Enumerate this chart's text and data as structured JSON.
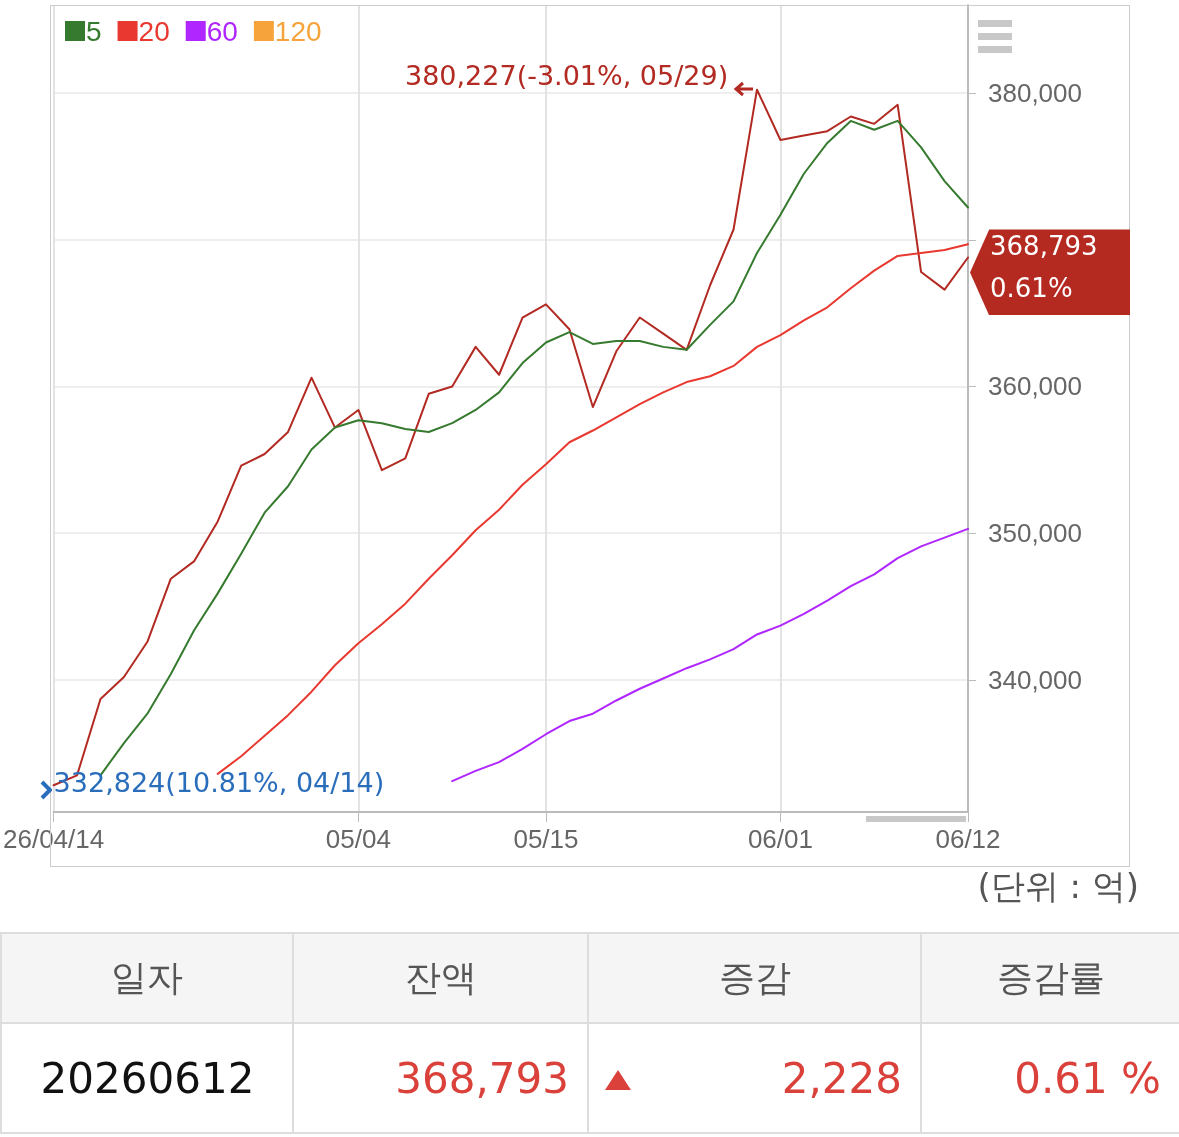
{
  "chart_data": [
    {
      "type": "line",
      "categories": [
        "26/04/14",
        null,
        null,
        null,
        null,
        null,
        null,
        null,
        null,
        null,
        null,
        null,
        null,
        "05/04",
        null,
        null,
        null,
        null,
        null,
        null,
        null,
        "05/15",
        null,
        null,
        null,
        null,
        null,
        null,
        null,
        null,
        null,
        "06/01",
        null,
        null,
        null,
        null,
        null,
        null,
        null,
        "06/12"
      ],
      "series": [
        {
          "color": "#b22a22",
          "values": [
            332824,
            333500,
            338700,
            340200,
            342600,
            346900,
            348100,
            350800,
            354600,
            355400,
            356900,
            360600,
            357200,
            358400,
            354300,
            355100,
            359500,
            360000,
            362700,
            360800,
            364700,
            365600,
            363900,
            358600,
            362400,
            364700,
            363600,
            362500,
            366900,
            370700,
            380227,
            376800,
            377100,
            377400,
            378400,
            377900,
            379200,
            367800,
            366600,
            368793
          ]
        },
        {
          "name": "5",
          "color": "#357a2e",
          "values": [
            null,
            null,
            333500,
            335700,
            337700,
            340400,
            343400,
            345900,
            348600,
            351400,
            353200,
            355700,
            357200,
            357700,
            357500,
            357100,
            356900,
            357500,
            358400,
            359600,
            361600,
            363000,
            363700,
            362900,
            363100,
            363100,
            362700,
            362500,
            364200,
            365800,
            369100,
            371700,
            374500,
            376600,
            378100,
            377500,
            378100,
            376300,
            374000,
            372200
          ]
        },
        {
          "name": "20",
          "color": "#e8382f",
          "values": [
            null,
            null,
            null,
            null,
            null,
            null,
            null,
            333600,
            334800,
            336200,
            337600,
            339200,
            341000,
            342500,
            343800,
            345200,
            346900,
            348500,
            350200,
            351600,
            353300,
            354700,
            356200,
            357000,
            357900,
            358800,
            359600,
            360300,
            360700,
            361400,
            362700,
            363500,
            364500,
            365400,
            366700,
            367900,
            368900,
            369100,
            369300,
            369700
          ]
        },
        {
          "name": "60",
          "color": "#b026ff",
          "values": [
            null,
            null,
            null,
            null,
            null,
            null,
            null,
            null,
            null,
            null,
            null,
            null,
            null,
            null,
            null,
            null,
            null,
            333100,
            333800,
            334400,
            335300,
            336300,
            337200,
            337700,
            338600,
            339400,
            340100,
            340800,
            341400,
            342100,
            343100,
            343700,
            344500,
            345400,
            346400,
            347200,
            348300,
            349100,
            349700,
            350300
          ]
        },
        {
          "name": "120",
          "color": "#f5a33a",
          "values": [
            null,
            null,
            null,
            null,
            null,
            null,
            null,
            null,
            null,
            null,
            null,
            null,
            null,
            null,
            null,
            null,
            null,
            null,
            null,
            null,
            null,
            null,
            null,
            null,
            null,
            null,
            null,
            null,
            null,
            null,
            null,
            null,
            null,
            null,
            null,
            null,
            null,
            null,
            null,
            null
          ]
        }
      ],
      "ylim": [
        331000,
        386000
      ],
      "yticks": [
        {
          "value": 340000,
          "label": "340,000"
        },
        {
          "value": 350000,
          "label": "350,000"
        },
        {
          "value": 360000,
          "label": "360,000"
        },
        {
          "value": 370000,
          "label": null
        },
        {
          "value": 380000,
          "label": "380,000"
        }
      ],
      "grid": true,
      "legend": "top left",
      "marker": "none",
      "annotations": [
        "380,227(-3.01%, 05/29)",
        {
          "text": "332,824(10.81%, 04/14)",
          "x": "26/04/14",
          "y": 332824
        },
        "368,793",
        "0.61%",
        "(단위 : 억)"
      ]
    },
    {
      "type": "other",
      "categories": [
        "일자",
        "잔액",
        "증감",
        "증감률"
      ],
      "annotations": [
        "20260612",
        "368,793",
        "2,228",
        "0.61 %"
      ]
    }
  ]
}
